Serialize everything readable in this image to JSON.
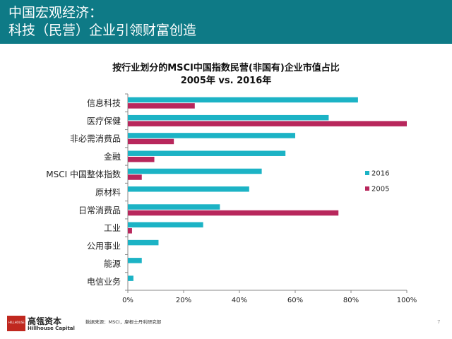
{
  "header": {
    "line1": "中国宏观经济：",
    "line2": "科技（民营）企业引领财富创造"
  },
  "chart_data": {
    "type": "bar",
    "orientation": "horizontal",
    "title": "按行业划分的MSCI中国指数民营(非国有)企业市值占比",
    "subtitle": "2005年 vs. 2016年",
    "categories": [
      "信息科技",
      "医疗保健",
      "非必需消费品",
      "金融",
      "MSCI 中国整体指数",
      "原材料",
      "日常消费品",
      "工业",
      "公用事业",
      "能源",
      "电信业务"
    ],
    "series": [
      {
        "name": "2016",
        "color": "#1cb3c5",
        "values": [
          82.5,
          72,
          60,
          56.5,
          48,
          43.5,
          33,
          27,
          11,
          5,
          2
        ]
      },
      {
        "name": "2005",
        "color": "#b8275c",
        "values": [
          24,
          100,
          16.5,
          9.5,
          5,
          0,
          75.5,
          1.5,
          0,
          0,
          0
        ]
      }
    ],
    "xlim": [
      0,
      100
    ],
    "xticks": [
      "0%",
      "20%",
      "40%",
      "60%",
      "80%",
      "100%"
    ],
    "grid": false,
    "legend_position": "right"
  },
  "footer": {
    "logo_mark": "HILLHOUSE",
    "brand_name": "高瓴资本",
    "brand_sub": "Hillhouse Capital",
    "source": "数据来源：MSCI，摩根士丹利研究部",
    "page_number": "7"
  }
}
